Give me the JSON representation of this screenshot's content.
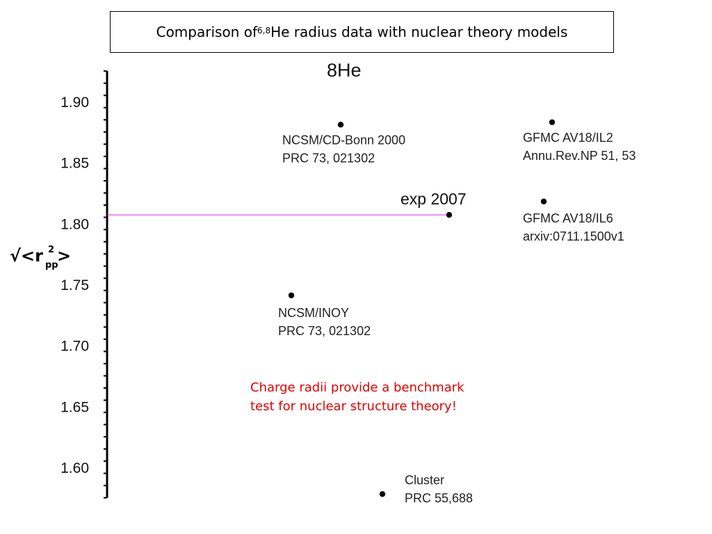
{
  "header": {
    "title_prefix": "Comparison of ",
    "title_sup": "6,8",
    "title_suffix": "He radius data with nuclear theory models"
  },
  "chart_data": {
    "type": "scatter",
    "title": "8He",
    "ylabel": {
      "main": "√<r",
      "sup": "2",
      "sub": "pp",
      "close": ">"
    },
    "ylim": [
      1.575,
      1.925
    ],
    "yticks": [
      1.9,
      1.85,
      1.8,
      1.75,
      1.7,
      1.65,
      1.6
    ],
    "ytick_labels": [
      "1.90",
      "1.85",
      "1.80",
      "1.75",
      "1.70",
      "1.65",
      "1.60"
    ],
    "reference_line": {
      "value": 1.807,
      "color": "#e040e0"
    },
    "points": [
      {
        "y": 1.881,
        "label_line1": "NCSM/CD-Bonn 2000",
        "label_line2": "PRC 73, 021302"
      },
      {
        "y": 1.883,
        "label_line1": "GFMC AV18/IL2",
        "label_line2": "Annu.Rev.NP 51, 53"
      },
      {
        "y": 1.807,
        "label_line1": "exp 2007",
        "label_line2": ""
      },
      {
        "y": 1.818,
        "label_line1": "GFMC AV18/IL6",
        "label_line2": "arxiv:0711.1500v1"
      },
      {
        "y": 1.741,
        "label_line1": "NCSM/INOY",
        "label_line2": "PRC 73, 021302"
      },
      {
        "y": 1.578,
        "label_line1": "Cluster",
        "label_line2": "PRC 55,688"
      }
    ]
  },
  "annotation": {
    "line1": "Charge radii provide a benchmark",
    "line2": "test for nuclear structure theory!",
    "color": "#e00000"
  }
}
